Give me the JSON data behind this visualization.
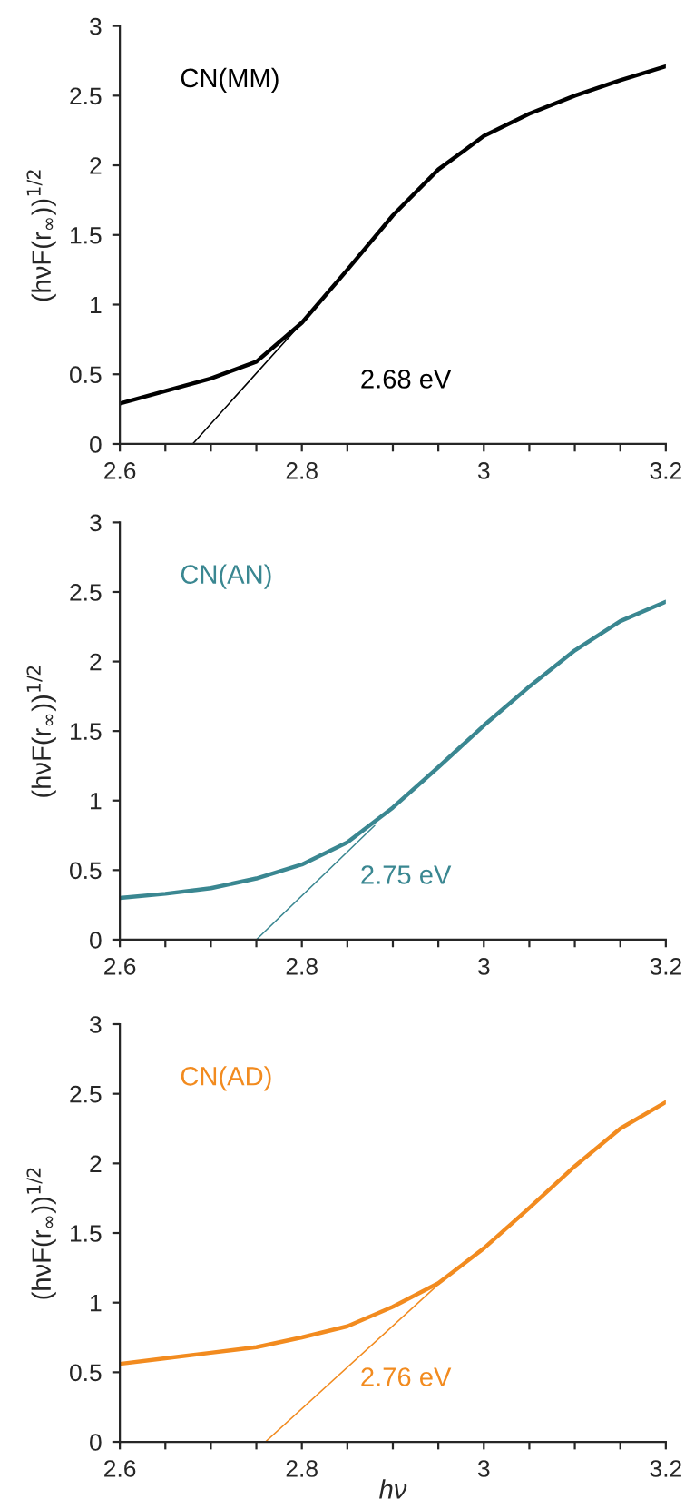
{
  "chart_data": [
    {
      "type": "line",
      "ylabel": "(hνF(r$_{∞}$))$^{1/2}$",
      "xlim": [
        2.6,
        3.2
      ],
      "ylim": [
        0,
        3
      ],
      "xticks": [
        2.6,
        {
          "value": 2.65,
          "label": null
        },
        {
          "value": 2.7,
          "label": null
        },
        {
          "value": 2.75,
          "label": null
        },
        2.8,
        {
          "value": 2.85,
          "label": null
        },
        {
          "value": 2.9,
          "label": null
        },
        {
          "value": 2.95,
          "label": null
        },
        3,
        {
          "value": 3.05,
          "label": null
        },
        {
          "value": 3.1,
          "label": null
        },
        {
          "value": 3.15,
          "label": null
        },
        3.2
      ],
      "yticks": [
        0,
        0.5,
        1,
        1.5,
        2,
        2.5,
        3
      ],
      "grid": false,
      "annotations": [
        "2.68 eV"
      ],
      "series": [
        {
          "name": "CN(MM)",
          "color": "#000000",
          "x": [
            2.6,
            2.65,
            2.7,
            2.75,
            2.8,
            2.85,
            2.9,
            2.95,
            3.0,
            3.05,
            3.1,
            3.15,
            3.2
          ],
          "values": [
            0.29,
            0.38,
            0.47,
            0.59,
            0.87,
            1.25,
            1.64,
            1.97,
            2.21,
            2.37,
            2.5,
            2.61,
            2.71
          ]
        },
        {
          "type": "line",
          "color": "#000000",
          "x": [
            2.68,
            2.8
          ],
          "values": [
            0,
            0.87
          ]
        }
      ]
    },
    {
      "type": "line",
      "ylabel": "(hνF(r$_{∞}$))$^{1/2}$",
      "xlim": [
        2.6,
        3.2
      ],
      "ylim": [
        0,
        3
      ],
      "xticks": [
        2.6,
        {
          "value": 2.65,
          "label": null
        },
        {
          "value": 2.7,
          "label": null
        },
        {
          "value": 2.75,
          "label": null
        },
        2.8,
        {
          "value": 2.85,
          "label": null
        },
        {
          "value": 2.9,
          "label": null
        },
        {
          "value": 2.95,
          "label": null
        },
        3,
        {
          "value": 3.05,
          "label": null
        },
        {
          "value": 3.1,
          "label": null
        },
        {
          "value": 3.15,
          "label": null
        },
        3.2
      ],
      "yticks": [
        0,
        0.5,
        1,
        1.5,
        2,
        2.5,
        3
      ],
      "grid": false,
      "annotations": [
        "2.75 eV"
      ],
      "series": [
        {
          "name": "CN(AN)",
          "color": "#3a8791",
          "x": [
            2.6,
            2.65,
            2.7,
            2.75,
            2.8,
            2.85,
            2.9,
            2.95,
            3.0,
            3.05,
            3.1,
            3.15,
            3.2
          ],
          "values": [
            0.3,
            0.33,
            0.37,
            0.44,
            0.54,
            0.7,
            0.95,
            1.24,
            1.54,
            1.82,
            2.08,
            2.29,
            2.43
          ]
        },
        {
          "type": "line",
          "color": "#3a8791",
          "x": [
            2.75,
            2.88
          ],
          "values": [
            0,
            0.82
          ]
        }
      ]
    },
    {
      "type": "line",
      "xlabel": "hν",
      "ylabel": "(hνF(r$_{∞}$))$^{1/2}$",
      "xlim": [
        2.6,
        3.2
      ],
      "ylim": [
        0,
        3
      ],
      "xticks": [
        2.6,
        {
          "value": 2.65,
          "label": null
        },
        {
          "value": 2.7,
          "label": null
        },
        {
          "value": 2.75,
          "label": null
        },
        2.8,
        {
          "value": 2.85,
          "label": null
        },
        {
          "value": 2.9,
          "label": null
        },
        {
          "value": 2.95,
          "label": null
        },
        3,
        {
          "value": 3.05,
          "label": null
        },
        {
          "value": 3.1,
          "label": null
        },
        {
          "value": 3.15,
          "label": null
        },
        3.2
      ],
      "yticks": [
        0,
        0.5,
        1,
        1.5,
        2,
        2.5,
        3
      ],
      "grid": false,
      "annotations": [
        "2.76 eV"
      ],
      "series": [
        {
          "name": "CN(AD)",
          "color": "#f28b1f",
          "x": [
            2.6,
            2.65,
            2.7,
            2.75,
            2.8,
            2.85,
            2.9,
            2.95,
            3.0,
            3.05,
            3.1,
            3.15,
            3.2
          ],
          "values": [
            0.56,
            0.6,
            0.64,
            0.68,
            0.75,
            0.83,
            0.97,
            1.14,
            1.39,
            1.68,
            1.98,
            2.25,
            2.44
          ]
        },
        {
          "type": "line",
          "color": "#f28b1f",
          "x": [
            2.76,
            2.97
          ],
          "values": [
            0,
            1.25
          ]
        }
      ]
    }
  ]
}
